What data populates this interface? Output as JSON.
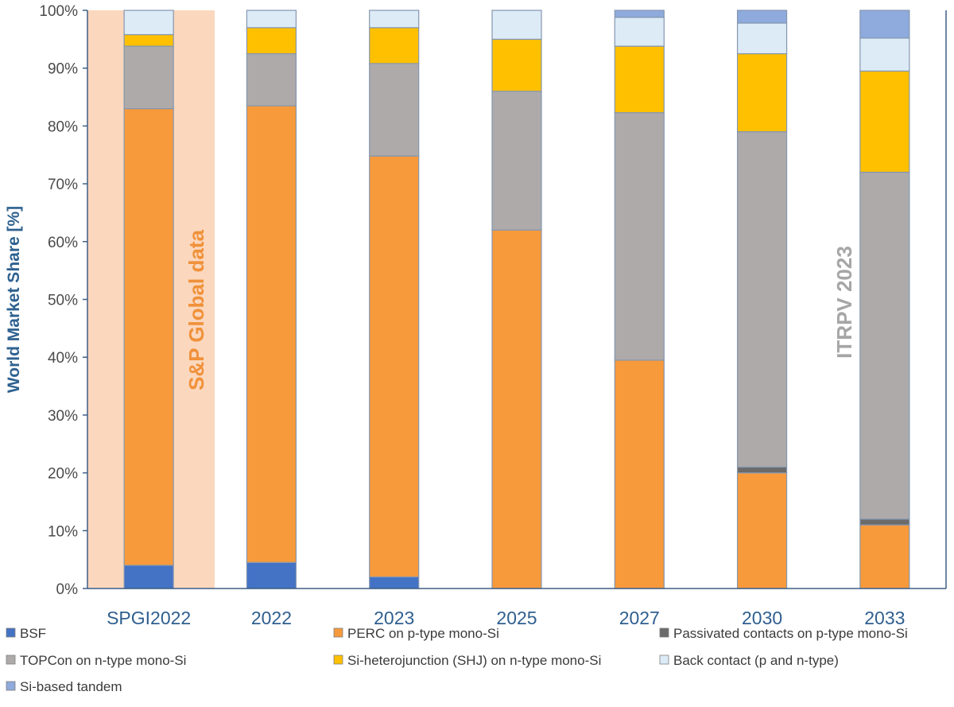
{
  "chart_data": {
    "type": "bar",
    "stacked": true,
    "title": "",
    "xlabel": "",
    "ylabel": "World Market Share [%]",
    "ylim": [
      0,
      100
    ],
    "yticks": [
      "0%",
      "10%",
      "20%",
      "30%",
      "40%",
      "50%",
      "60%",
      "70%",
      "80%",
      "90%",
      "100%"
    ],
    "categories": [
      "SPGI2022",
      "2022",
      "2023",
      "2025",
      "2027",
      "2030",
      "2033"
    ],
    "series": [
      {
        "name": "BSF",
        "color": "#4472c4",
        "values": [
          4,
          4.5,
          2,
          0,
          0,
          0,
          0
        ]
      },
      {
        "name": "PERC on p-type mono-Si",
        "color": "#f79a3b",
        "values": [
          79,
          79,
          72.8,
          62,
          39.5,
          20,
          11
        ]
      },
      {
        "name": "Passivated contacts on p-type mono-Si",
        "color": "#6b6b6b",
        "values": [
          0,
          0,
          0,
          0,
          0,
          1,
          1
        ]
      },
      {
        "name": "TOPCon on n-type mono-Si",
        "color": "#aeaaaa",
        "values": [
          10.8,
          9,
          16,
          24,
          42.8,
          58,
          60
        ]
      },
      {
        "name": "Si-heterojunction (SHJ) on n-type mono-Si",
        "color": "#ffc000",
        "values": [
          2,
          4.5,
          6.2,
          9,
          11.5,
          13.5,
          17.5
        ]
      },
      {
        "name": "Back contact (p and n-type)",
        "color": "#ddebf7",
        "values": [
          4.2,
          3,
          3,
          5,
          5,
          5.3,
          5.7
        ]
      },
      {
        "name": "Si-based tandem",
        "color": "#8faadc",
        "values": [
          0,
          0,
          0,
          0,
          1.2,
          2.2,
          4.8
        ]
      }
    ],
    "legend": "bottom",
    "annotations": [
      {
        "text": "S&P Global data",
        "color": "#f0913a"
      },
      {
        "text": "ITRPV 2023",
        "color": "#a6a6a6"
      }
    ],
    "highlight_region_color": "#fbd7bd"
  }
}
